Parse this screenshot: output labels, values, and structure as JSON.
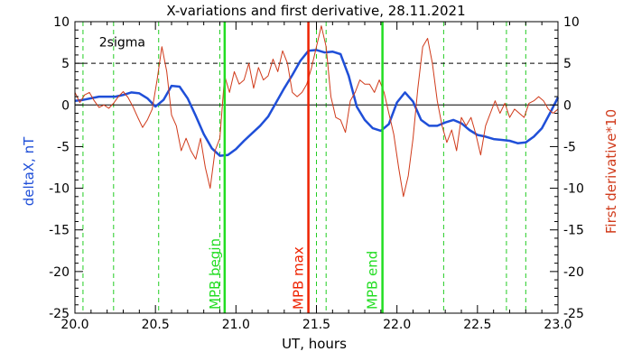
{
  "chart_data": {
    "type": "line",
    "title": "X-variations and first derivative, 28.11.2021",
    "xlabel": "UT, hours",
    "ylabel_left": "deltaX, nT",
    "ylabel_right": "First derivative*10",
    "xlim": [
      20.0,
      23.0
    ],
    "ylim_left": [
      -25,
      10
    ],
    "ylim_right": [
      -25,
      10
    ],
    "x_ticks": [
      20.0,
      20.5,
      21.0,
      21.5,
      22.0,
      22.5,
      23.0
    ],
    "x_tick_labels": [
      "20.0",
      "20.5",
      "21.0",
      "21.5",
      "22.0",
      "22.5",
      "23.0"
    ],
    "y_ticks": [
      10,
      5,
      0,
      -5,
      -10,
      -15,
      -20,
      -25
    ],
    "y_tick_labels": [
      "10",
      "5",
      "0",
      "-5",
      "-10",
      "-15",
      "-20",
      "-25"
    ],
    "grid": false,
    "colors": {
      "deltaX": "#1f4fd8",
      "derivative": "#d03a1a",
      "mpb_begin": "#22dd22",
      "mpb_max": "#ee2200",
      "mpb_end": "#22dd22",
      "dashed_green": "#22cc22",
      "zero_line": "#000000",
      "sigma_line": "#000000"
    },
    "sigma_label": "2sigma",
    "sigma_level": 5,
    "dashed_green_lines": [
      20.05,
      20.24,
      20.52,
      20.9,
      21.5,
      21.56,
      22.29,
      22.68,
      22.8
    ],
    "markers": [
      {
        "x": 20.93,
        "label": "MPB begin",
        "color": "#22dd22"
      },
      {
        "x": 21.45,
        "label": "MPB max",
        "color": "#ee2200"
      },
      {
        "x": 21.91,
        "label": "MPB end",
        "color": "#22dd22"
      }
    ],
    "series": [
      {
        "key": "deltaX",
        "axis": "left",
        "x": [
          20.0,
          20.05,
          20.1,
          20.15,
          20.2,
          20.25,
          20.3,
          20.35,
          20.4,
          20.45,
          20.5,
          20.55,
          20.6,
          20.65,
          20.7,
          20.75,
          20.8,
          20.85,
          20.9,
          20.95,
          21.0,
          21.05,
          21.1,
          21.15,
          21.2,
          21.25,
          21.3,
          21.35,
          21.4,
          21.45,
          21.5,
          21.55,
          21.6,
          21.65,
          21.7,
          21.75,
          21.8,
          21.85,
          21.9,
          21.95,
          22.0,
          22.05,
          22.1,
          22.15,
          22.2,
          22.25,
          22.3,
          22.35,
          22.4,
          22.45,
          22.5,
          22.55,
          22.6,
          22.65,
          22.7,
          22.75,
          22.8,
          22.85,
          22.9,
          22.95,
          23.0
        ],
        "values": [
          0.5,
          0.6,
          0.8,
          1.0,
          1.0,
          1.0,
          1.2,
          1.5,
          1.4,
          0.8,
          -0.2,
          0.6,
          2.3,
          2.2,
          0.8,
          -1.3,
          -3.5,
          -5.2,
          -6.1,
          -6.0,
          -5.3,
          -4.3,
          -3.4,
          -2.5,
          -1.4,
          0.3,
          2.0,
          3.6,
          5.3,
          6.5,
          6.6,
          6.3,
          6.4,
          6.1,
          3.5,
          -0.2,
          -1.8,
          -2.8,
          -3.1,
          -2.3,
          0.3,
          1.5,
          0.4,
          -1.8,
          -2.5,
          -2.5,
          -2.1,
          -1.8,
          -2.2,
          -3.0,
          -3.6,
          -3.8,
          -4.1,
          -4.2,
          -4.3,
          -4.6,
          -4.5,
          -3.8,
          -2.8,
          -1.0,
          0.9
        ]
      },
      {
        "key": "derivative",
        "axis": "right",
        "x": [
          20.0,
          20.03,
          20.06,
          20.09,
          20.12,
          20.15,
          20.18,
          20.21,
          20.24,
          20.27,
          20.3,
          20.33,
          20.36,
          20.39,
          20.42,
          20.45,
          20.48,
          20.51,
          20.54,
          20.57,
          20.6,
          20.63,
          20.66,
          20.69,
          20.72,
          20.75,
          20.78,
          20.81,
          20.84,
          20.87,
          20.9,
          20.93,
          20.96,
          20.99,
          21.02,
          21.05,
          21.08,
          21.11,
          21.14,
          21.17,
          21.2,
          21.23,
          21.26,
          21.29,
          21.32,
          21.35,
          21.38,
          21.41,
          21.44,
          21.47,
          21.5,
          21.53,
          21.56,
          21.59,
          21.62,
          21.65,
          21.68,
          21.71,
          21.74,
          21.77,
          21.8,
          21.83,
          21.86,
          21.89,
          21.92,
          21.95,
          21.98,
          22.01,
          22.04,
          22.07,
          22.1,
          22.13,
          22.16,
          22.19,
          22.22,
          22.25,
          22.28,
          22.31,
          22.34,
          22.37,
          22.4,
          22.43,
          22.46,
          22.49,
          22.52,
          22.55,
          22.58,
          22.61,
          22.64,
          22.67,
          22.7,
          22.73,
          22.76,
          22.79,
          22.82,
          22.85,
          22.88,
          22.91,
          22.94,
          22.97,
          23.0
        ],
        "values": [
          1.5,
          0.3,
          1.2,
          1.5,
          0.5,
          -0.3,
          0.0,
          -0.4,
          0.2,
          1.0,
          1.6,
          0.9,
          -0.2,
          -1.5,
          -2.7,
          -1.8,
          -0.5,
          3.0,
          7.0,
          4.0,
          -1.2,
          -2.5,
          -5.5,
          -4.0,
          -5.5,
          -6.5,
          -4.0,
          -7.5,
          -10.0,
          -5.5,
          -4.0,
          3.5,
          1.5,
          4.0,
          2.5,
          3.0,
          5.0,
          2.0,
          4.5,
          3.0,
          3.5,
          5.5,
          4.0,
          6.5,
          5.0,
          1.5,
          1.0,
          1.5,
          2.5,
          4.5,
          7.0,
          9.5,
          7.0,
          1.0,
          -1.5,
          -1.8,
          -3.3,
          0.5,
          1.5,
          3.0,
          2.5,
          2.5,
          1.5,
          3.0,
          1.5,
          -1.0,
          -3.5,
          -7.5,
          -11.0,
          -8.5,
          -4.0,
          2.0,
          7.0,
          8.0,
          5.0,
          0.5,
          -2.5,
          -4.5,
          -3.0,
          -5.5,
          -1.5,
          -2.5,
          -1.5,
          -3.5,
          -6.0,
          -2.5,
          -1.0,
          0.5,
          -1.0,
          0.2,
          -1.5,
          -0.5,
          -1.0,
          -1.5,
          0.2,
          0.5,
          1.0,
          0.5,
          -0.5,
          -1.0,
          -0.5
        ]
      }
    ]
  }
}
